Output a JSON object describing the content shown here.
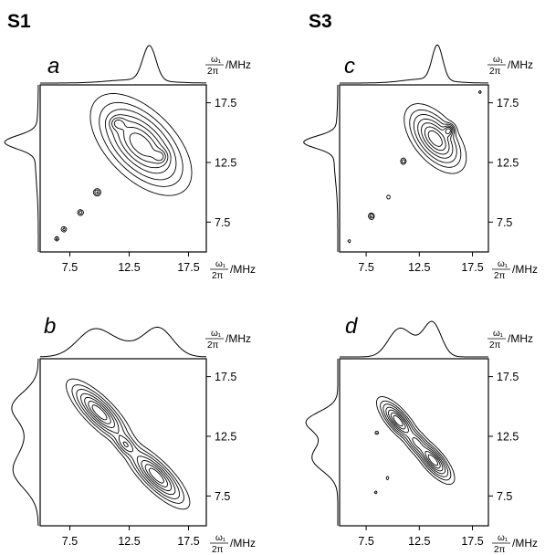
{
  "figure": {
    "sample_labels": [
      "S1",
      "S3"
    ]
  },
  "chart_data": [
    {
      "type": "contour",
      "panel": "a",
      "sample": "S1",
      "axis_label": {
        "numerator": "ω₁",
        "denominator": "2π",
        "unit": "/MHz"
      },
      "xlim": [
        5,
        19
      ],
      "ylim": [
        5,
        19
      ],
      "x_ticks": [
        "7.5",
        "12.5",
        "17.5"
      ],
      "y_ticks": [
        "7.5",
        "12.5",
        "17.5"
      ],
      "show_x_ticks": true,
      "projection_peaks": [
        {
          "center": 14.2,
          "width": 0.55,
          "height": 1.0
        },
        {
          "center": 13.0,
          "width": 2.2,
          "height": 0.1
        }
      ],
      "peaks": [
        {
          "x": 13.5,
          "y": 14.0,
          "sx": 1.9,
          "sy": 1.9,
          "rho": -0.55,
          "amp": 1.0
        },
        {
          "x": 11.5,
          "y": 15.8,
          "sx": 0.4,
          "sy": 0.35,
          "rho": 0,
          "amp": 0.35
        },
        {
          "x": 15.2,
          "y": 13.0,
          "sx": 0.4,
          "sy": 0.4,
          "rho": 0,
          "amp": 0.3
        },
        {
          "x": 9.8,
          "y": 10.0,
          "sx": 0.18,
          "sy": 0.18,
          "rho": 0,
          "amp": 0.35
        },
        {
          "x": 8.4,
          "y": 8.3,
          "sx": 0.15,
          "sy": 0.15,
          "rho": 0,
          "amp": 0.3
        },
        {
          "x": 7.0,
          "y": 6.9,
          "sx": 0.14,
          "sy": 0.14,
          "rho": 0,
          "amp": 0.28
        },
        {
          "x": 6.4,
          "y": 6.1,
          "sx": 0.12,
          "sy": 0.12,
          "rho": 0,
          "amp": 0.25
        }
      ]
    },
    {
      "type": "contour",
      "panel": "b",
      "sample": "S1",
      "axis_label": {
        "numerator": "ω₁",
        "denominator": "2π",
        "unit": "/MHz"
      },
      "xlim": [
        5,
        19
      ],
      "ylim": [
        5,
        19
      ],
      "x_ticks": [
        "7.5",
        "12.5",
        "17.5"
      ],
      "y_ticks": [
        "7.5",
        "12.5",
        "17.5"
      ],
      "show_x_ticks": true,
      "projection_peaks": [
        {
          "center": 9.5,
          "width": 1.4,
          "height": 0.75
        },
        {
          "center": 15.0,
          "width": 1.2,
          "height": 0.8
        },
        {
          "center": 12.2,
          "width": 1.5,
          "height": 0.3
        }
      ],
      "peaks": [
        {
          "x": 10.0,
          "y": 14.5,
          "sx": 1.25,
          "sy": 1.25,
          "rho": -0.8,
          "amp": 1.0
        },
        {
          "x": 14.8,
          "y": 9.2,
          "sx": 1.25,
          "sy": 1.25,
          "rho": -0.8,
          "amp": 1.0
        },
        {
          "x": 12.2,
          "y": 11.8,
          "sx": 0.5,
          "sy": 0.5,
          "rho": -0.5,
          "amp": 0.45
        }
      ]
    },
    {
      "type": "contour",
      "panel": "c",
      "sample": "S3",
      "axis_label": {
        "numerator": "ω₁",
        "denominator": "2π",
        "unit": "/MHz"
      },
      "xlim": [
        5,
        19
      ],
      "ylim": [
        5,
        19
      ],
      "x_ticks": [
        "7.5",
        "12.5",
        "17.5"
      ],
      "y_ticks": [
        "7.5",
        "12.5",
        "17.5"
      ],
      "show_x_ticks": true,
      "projection_peaks": [
        {
          "center": 14.2,
          "width": 0.5,
          "height": 1.0
        },
        {
          "center": 13.0,
          "width": 2.0,
          "height": 0.12
        }
      ],
      "peaks": [
        {
          "x": 14.0,
          "y": 14.5,
          "sx": 1.3,
          "sy": 1.3,
          "rho": -0.55,
          "amp": 1.0
        },
        {
          "x": 15.3,
          "y": 15.2,
          "sx": 0.3,
          "sy": 0.3,
          "rho": 0,
          "amp": 0.6
        },
        {
          "x": 11.0,
          "y": 12.6,
          "sx": 0.16,
          "sy": 0.16,
          "rho": 0,
          "amp": 0.3
        },
        {
          "x": 9.6,
          "y": 9.6,
          "sx": 0.12,
          "sy": 0.12,
          "rho": 0,
          "amp": 0.2
        },
        {
          "x": 8.0,
          "y": 8.0,
          "sx": 0.16,
          "sy": 0.16,
          "rho": 0,
          "amp": 0.35
        },
        {
          "x": 5.9,
          "y": 5.9,
          "sx": 0.1,
          "sy": 0.1,
          "rho": 0,
          "amp": 0.2
        },
        {
          "x": 18.2,
          "y": 18.4,
          "sx": 0.1,
          "sy": 0.1,
          "rho": 0,
          "amp": 0.2
        }
      ]
    },
    {
      "type": "contour",
      "panel": "d",
      "sample": "S3",
      "axis_label": {
        "numerator": "ω₁",
        "denominator": "2π",
        "unit": "/MHz"
      },
      "xlim": [
        5,
        19
      ],
      "ylim": [
        5,
        19
      ],
      "x_ticks": [
        "7.5",
        "12.5",
        "17.5"
      ],
      "y_ticks": [
        "7.5",
        "12.5",
        "17.5"
      ],
      "show_x_ticks": true,
      "projection_peaks": [
        {
          "center": 10.5,
          "width": 1.0,
          "height": 0.7
        },
        {
          "center": 13.8,
          "width": 0.8,
          "height": 0.85
        },
        {
          "center": 12.3,
          "width": 1.2,
          "height": 0.35
        }
      ],
      "peaks": [
        {
          "x": 10.5,
          "y": 13.8,
          "sx": 0.9,
          "sy": 0.9,
          "rho": -0.75,
          "amp": 1.0
        },
        {
          "x": 13.8,
          "y": 10.5,
          "sx": 0.9,
          "sy": 0.9,
          "rho": -0.75,
          "amp": 1.0
        },
        {
          "x": 12.2,
          "y": 12.0,
          "sx": 0.5,
          "sy": 0.5,
          "rho": -0.3,
          "amp": 0.4
        },
        {
          "x": 8.5,
          "y": 12.8,
          "sx": 0.1,
          "sy": 0.1,
          "rho": 0,
          "amp": 0.25
        },
        {
          "x": 8.4,
          "y": 7.8,
          "sx": 0.1,
          "sy": 0.1,
          "rho": 0,
          "amp": 0.2
        },
        {
          "x": 9.5,
          "y": 9.0,
          "sx": 0.1,
          "sy": 0.1,
          "rho": 0,
          "amp": 0.2
        }
      ]
    }
  ]
}
